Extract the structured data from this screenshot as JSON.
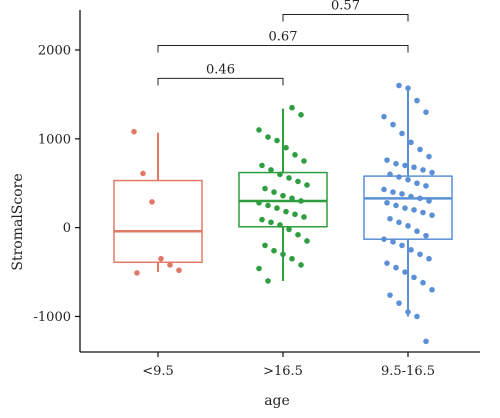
{
  "chart_data": {
    "type": "boxplot",
    "xlabel": "age",
    "ylabel": "StromalScore",
    "ylim": [
      -1400,
      2450
    ],
    "yticks": [
      -1000,
      0,
      1000,
      2000
    ],
    "ytick_labels": [
      "-1000",
      "0",
      "1000",
      "2000"
    ],
    "categories": [
      "<9.5",
      ">16.5",
      "9.5-16.5"
    ],
    "grid": false,
    "series": [
      {
        "category": "<9.5",
        "color": "#E07A66",
        "q1": -390,
        "median": -40,
        "q3": 530,
        "whisker_low": -500,
        "whisker_high": 1070,
        "points": [
          1080,
          610,
          290,
          -350,
          -420,
          -480,
          -510
        ]
      },
      {
        "category": ">16.5",
        "color": "#2E9E40",
        "q1": 10,
        "median": 300,
        "q3": 620,
        "whisker_low": -600,
        "whisker_high": 1340,
        "points": [
          1350,
          1270,
          1100,
          1020,
          980,
          900,
          820,
          750,
          700,
          650,
          600,
          560,
          520,
          480,
          440,
          400,
          360,
          330,
          300,
          280,
          250,
          220,
          180,
          150,
          120,
          90,
          60,
          30,
          -20,
          -80,
          -150,
          -200,
          -260,
          -300,
          -350,
          -420,
          -460,
          -600
        ]
      },
      {
        "category": "9.5-16.5",
        "color": "#5B8FD6",
        "q1": -130,
        "median": 330,
        "q3": 580,
        "whisker_low": -1000,
        "whisker_high": 1600,
        "points": [
          1600,
          1570,
          1430,
          1300,
          1250,
          1160,
          1060,
          960,
          880,
          800,
          760,
          720,
          700,
          680,
          650,
          620,
          600,
          570,
          540,
          500,
          470,
          430,
          400,
          380,
          350,
          330,
          300,
          280,
          250,
          220,
          200,
          170,
          140,
          100,
          60,
          20,
          -40,
          -90,
          -130,
          -160,
          -200,
          -250,
          -300,
          -350,
          -400,
          -450,
          -500,
          -560,
          -620,
          -700,
          -760,
          -850,
          -950,
          -1000,
          -1280
        ]
      }
    ],
    "annotations": [
      {
        "label": "0.57",
        "from": ">16.5",
        "to": "9.5-16.5",
        "y": 2400
      },
      {
        "label": "0.67",
        "from": "<9.5",
        "to": "9.5-16.5",
        "y": 2050
      },
      {
        "label": "0.46",
        "from": "<9.5",
        "to": ">16.5",
        "y": 1680
      }
    ]
  }
}
